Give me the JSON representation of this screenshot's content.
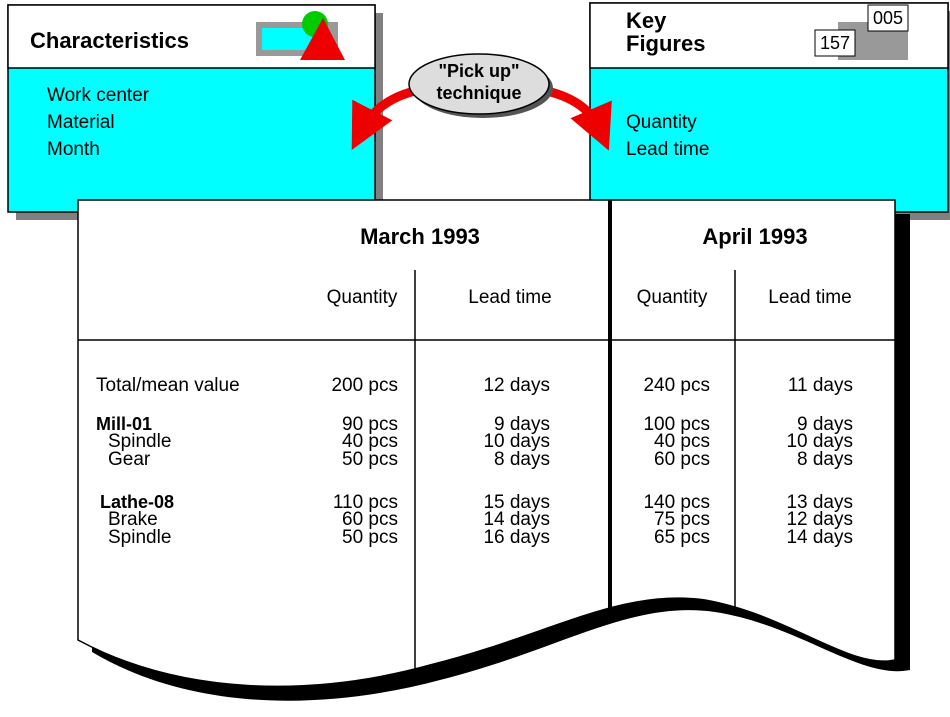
{
  "characteristics": {
    "title": "Characteristics",
    "items": [
      "Work center",
      "Material",
      "Month"
    ]
  },
  "key_figures": {
    "title_lines": [
      "Key",
      "Figures"
    ],
    "icon_numbers": [
      "005",
      "157"
    ],
    "items": [
      "Quantity",
      "Lead time"
    ]
  },
  "pick_up": {
    "lines": [
      "\"Pick up\"",
      "technique"
    ]
  },
  "table": {
    "months": [
      "March 1993",
      "April 1993"
    ],
    "columns": [
      "Quantity",
      "Lead time",
      "Quantity",
      "Lead time"
    ],
    "rows": [
      {
        "label": "Total/mean value",
        "bold": false,
        "indent": false,
        "cells": [
          "200 pcs",
          "12 days",
          "240 pcs",
          "11 days"
        ]
      },
      {
        "label": "Mill-01",
        "bold": true,
        "indent": false,
        "cells": [
          "90 pcs",
          "9 days",
          "100 pcs",
          "9 days"
        ]
      },
      {
        "label": "Spindle",
        "bold": false,
        "indent": true,
        "cells": [
          "40 pcs",
          "10 days",
          "40 pcs",
          "10 days"
        ]
      },
      {
        "label": "Gear",
        "bold": false,
        "indent": true,
        "cells": [
          "50 pcs",
          "8 days",
          "60 pcs",
          "8 days"
        ]
      },
      {
        "label": "Lathe-08",
        "bold": true,
        "indent": false,
        "cells": [
          "110 pcs",
          "15 days",
          "140 pcs",
          "13 days"
        ]
      },
      {
        "label": "Brake",
        "bold": false,
        "indent": true,
        "cells": [
          "60 pcs",
          "14 days",
          "75 pcs",
          "12 days"
        ]
      },
      {
        "label": "Spindle",
        "bold": false,
        "indent": true,
        "cells": [
          "50 pcs",
          "16 days",
          "65 pcs",
          "14 days"
        ]
      }
    ]
  }
}
